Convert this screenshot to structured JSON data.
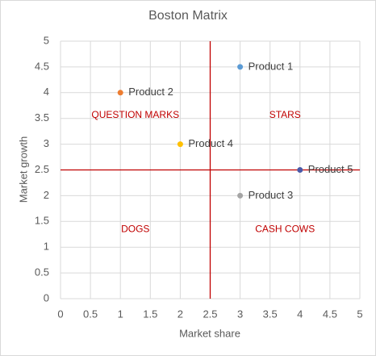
{
  "chart_data": {
    "type": "scatter",
    "title": "Boston Matrix",
    "x_label": "Market share",
    "y_label": "Market growth",
    "xlim": [
      0,
      5
    ],
    "xticks": [
      0,
      0.5,
      1,
      1.5,
      2,
      2.5,
      3,
      3.5,
      4,
      4.5,
      5
    ],
    "ylim": [
      0,
      5
    ],
    "yticks": [
      0,
      0.5,
      1,
      1.5,
      2,
      2.5,
      3,
      3.5,
      4,
      4.5,
      5
    ],
    "grid": true,
    "series": [
      {
        "name": "Product 1",
        "color": "#5b9bd5",
        "x": [
          3
        ],
        "values": [
          4.5
        ]
      },
      {
        "name": "Product 2",
        "color": "#ed7d31",
        "x": [
          1
        ],
        "values": [
          4
        ]
      },
      {
        "name": "Product 3",
        "color": "#a5a5a5",
        "x": [
          3
        ],
        "values": [
          2
        ]
      },
      {
        "name": "Product 4",
        "color": "#ffc000",
        "x": [
          2
        ],
        "values": [
          3
        ]
      },
      {
        "name": "Product 5",
        "color": "#4a5aa8",
        "x": [
          4
        ],
        "values": [
          2.5
        ]
      }
    ],
    "reference_lines": [
      {
        "axis": "x",
        "value": 2.5,
        "color": "#c00000"
      },
      {
        "axis": "y",
        "value": 2.5,
        "color": "#c00000"
      }
    ],
    "annotations": [
      {
        "text": "QUESTION MARKS",
        "quadrant": "top-left"
      },
      {
        "text": "STARS",
        "quadrant": "top-right"
      },
      {
        "text": "DOGS",
        "quadrant": "bottom-left"
      },
      {
        "text": "CASH COWS",
        "quadrant": "bottom-right"
      }
    ]
  }
}
